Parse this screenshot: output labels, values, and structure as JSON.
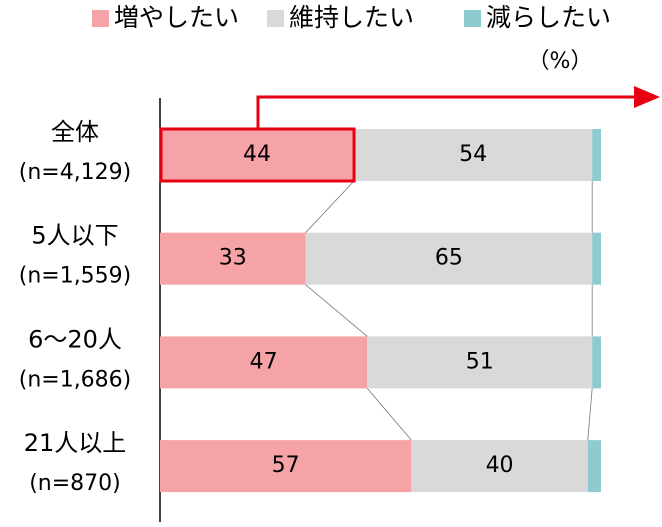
{
  "chart_data": {
    "type": "stacked-bar-horizontal",
    "unit_label": "（%）",
    "categories": [
      "全体",
      "5人以下",
      "6〜20人",
      "21人以上"
    ],
    "sample_sizes": [
      "(n=4,129)",
      "(n=1,559)",
      "(n=1,686)",
      "(n=870)"
    ],
    "series": [
      {
        "name": "増やしたい",
        "color": "#f6a3a8",
        "data_labels": true,
        "values": [
          44,
          33,
          47,
          57
        ]
      },
      {
        "name": "維持したい",
        "color": "#d9d9d9",
        "data_labels": true,
        "values": [
          54,
          65,
          51,
          40
        ]
      },
      {
        "name": "減らしたい",
        "color": "#8ecbcf",
        "data_labels": false,
        "values": [
          2,
          2,
          2,
          3
        ]
      }
    ],
    "xlim": [
      0,
      100
    ],
    "legend": "top"
  }
}
